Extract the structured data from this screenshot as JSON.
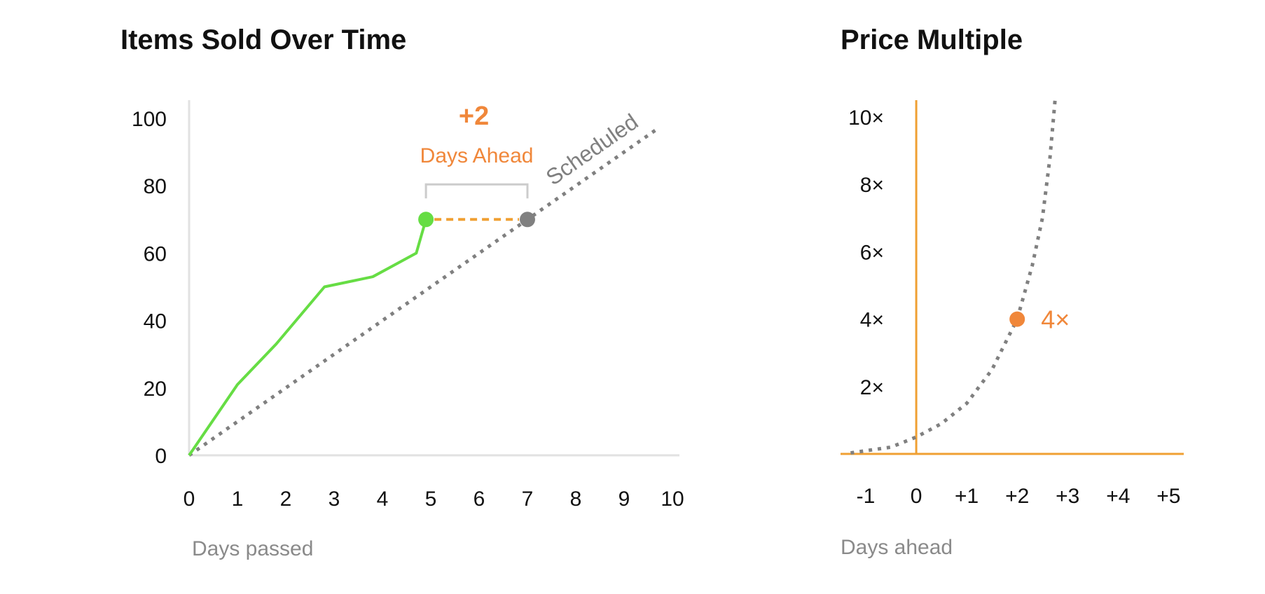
{
  "chart_data": [
    {
      "type": "line",
      "title": "Items Sold Over Time",
      "xlabel": "Days passed",
      "ylabel": "",
      "xlim": [
        0,
        10
      ],
      "ylim": [
        0,
        100
      ],
      "x_ticks": [
        "0",
        "1",
        "2",
        "3",
        "4",
        "5",
        "6",
        "7",
        "8",
        "9",
        "10"
      ],
      "y_ticks": [
        "0",
        "20",
        "40",
        "60",
        "80",
        "100"
      ],
      "grid": false,
      "series": [
        {
          "name": "",
          "color": "#66dd44",
          "style": "solid",
          "x": [
            0,
            1,
            1.8,
            2.8,
            3.8,
            4.7,
            4.9
          ],
          "y": [
            0,
            21,
            33,
            50,
            53,
            60,
            70
          ]
        },
        {
          "name": "Scheduled",
          "color": "#808080",
          "style": "dotted",
          "x": [
            0,
            9.7
          ],
          "y": [
            0,
            97
          ]
        }
      ],
      "annotations": {
        "value": "+2",
        "label": "Days Ahead",
        "actual_point": {
          "x": 4.9,
          "y": 70,
          "color": "#66dd44"
        },
        "scheduled_point": {
          "x": 7,
          "y": 70,
          "color": "#808080"
        },
        "connector_color": "#f0a033",
        "bracket_color": "#cccccc",
        "scheduled_label": "Scheduled"
      }
    },
    {
      "type": "line",
      "title": "Price Multiple",
      "xlabel": "Days ahead",
      "ylabel": "",
      "xlim": [
        -1.5,
        5.3
      ],
      "ylim": [
        0,
        10.5
      ],
      "x_ticks": [
        {
          "value": -1,
          "label": "-1"
        },
        {
          "value": 0,
          "label": "0"
        },
        {
          "value": 1,
          "label": "+1"
        },
        {
          "value": 2,
          "label": "+2"
        },
        {
          "value": 3,
          "label": "+3"
        },
        {
          "value": 4,
          "label": "+4"
        },
        {
          "value": 5,
          "label": "+5"
        }
      ],
      "y_ticks": [
        {
          "value": 2,
          "label": "2×"
        },
        {
          "value": 4,
          "label": "4×"
        },
        {
          "value": 6,
          "label": "6×"
        },
        {
          "value": 8,
          "label": "8×"
        },
        {
          "value": 10,
          "label": "10×"
        }
      ],
      "grid": false,
      "axis_color": "#f0a033",
      "series": [
        {
          "name": "",
          "color": "#808080",
          "style": "dotted",
          "x": [
            -1.3,
            -0.5,
            0,
            0.5,
            1,
            1.5,
            2,
            2.3,
            2.5,
            2.65,
            2.75
          ],
          "y": [
            0.03,
            0.2,
            0.5,
            0.9,
            1.5,
            2.5,
            4,
            5.6,
            7,
            8.8,
            10.5
          ]
        }
      ],
      "highlight": {
        "x": 2,
        "y": 4,
        "label": "4×",
        "color": "#f0873a"
      }
    }
  ]
}
